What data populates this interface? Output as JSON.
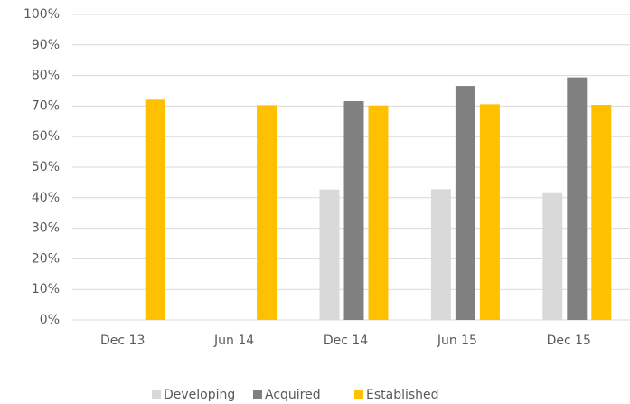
{
  "chart_data": {
    "type": "bar",
    "categories": [
      "Dec 13",
      "Jun 14",
      "Dec 14",
      "Jun 15",
      "Dec 15"
    ],
    "series": [
      {
        "name": "Developing",
        "color": "#d9d9d9",
        "values": [
          null,
          null,
          42.7,
          42.8,
          41.8
        ]
      },
      {
        "name": "Acquired",
        "color": "#808080",
        "values": [
          null,
          null,
          71.6,
          76.6,
          79.4
        ]
      },
      {
        "name": "Established",
        "color": "#ffc000",
        "values": [
          72.1,
          70.3,
          70.2,
          70.6,
          70.4
        ]
      }
    ],
    "ylim": [
      0,
      100
    ],
    "yticks": [
      {
        "value": 0,
        "label": "0%"
      },
      {
        "value": 10,
        "label": "10%"
      },
      {
        "value": 20,
        "label": "20%"
      },
      {
        "value": 30,
        "label": "30%"
      },
      {
        "value": 40,
        "label": "40%"
      },
      {
        "value": 50,
        "label": "50%"
      },
      {
        "value": 60,
        "label": "60%"
      },
      {
        "value": 70,
        "label": "70%"
      },
      {
        "value": 80,
        "label": "80%"
      },
      {
        "value": 90,
        "label": "90%"
      },
      {
        "value": 100,
        "label": "100%"
      }
    ],
    "grid": true,
    "legend": "bottom"
  }
}
